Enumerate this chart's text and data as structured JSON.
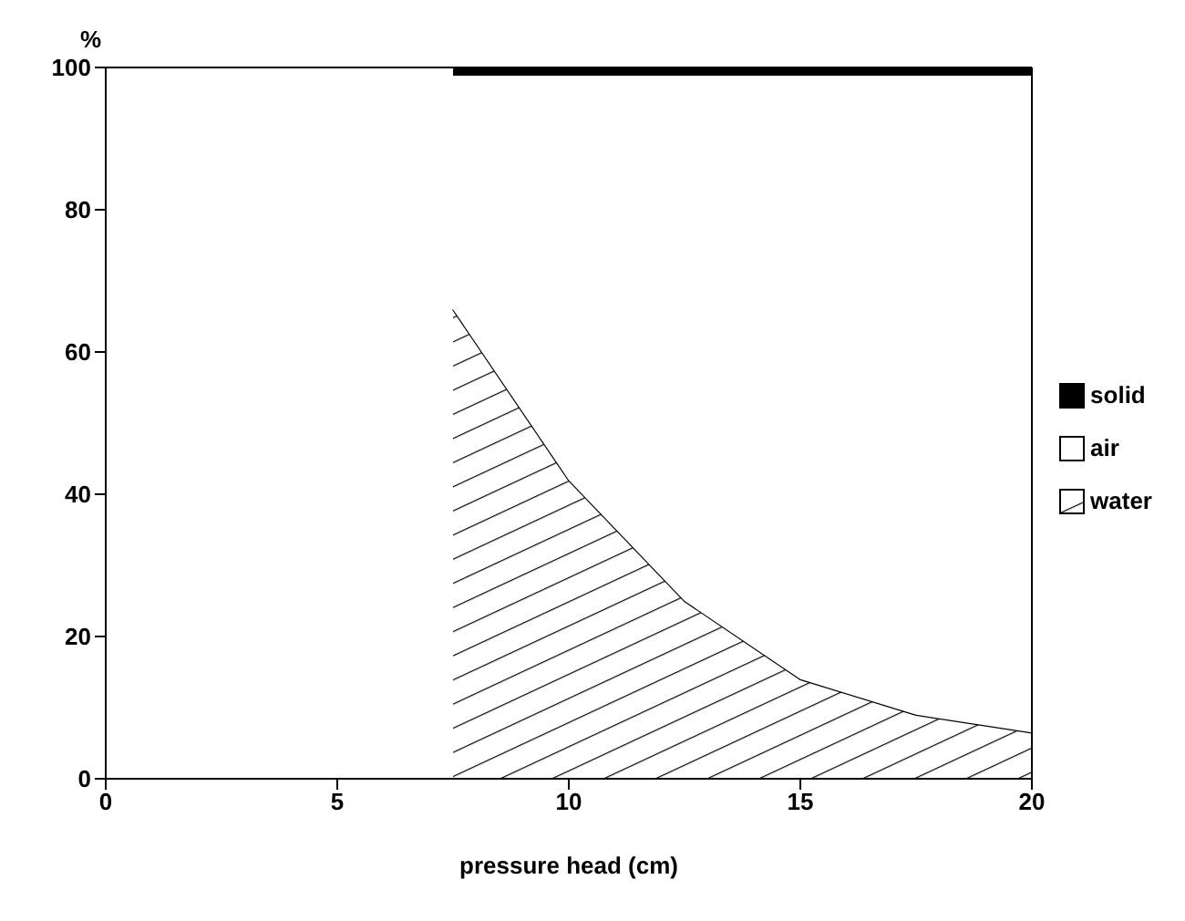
{
  "chart_data": {
    "type": "area",
    "stacked": true,
    "xlabel": "pressure head (cm)",
    "ylabel": "%",
    "x": [
      7.5,
      10,
      12.5,
      15,
      17.5,
      20
    ],
    "series": [
      {
        "name": "water",
        "color": "#000000",
        "values": [
          66,
          42,
          25,
          14,
          9,
          6.5
        ]
      },
      {
        "name": "air",
        "color": "#ffffff",
        "values": [
          33,
          57,
          74,
          85,
          90,
          92.5
        ]
      },
      {
        "name": "solid",
        "color": "#000000",
        "values": [
          1,
          1,
          1,
          1,
          1,
          1
        ]
      }
    ],
    "xlim": [
      0,
      20
    ],
    "xticks": [
      0,
      5,
      10,
      15,
      20
    ],
    "ylim": [
      0,
      100
    ],
    "yticks": [
      0,
      20,
      40,
      60,
      80,
      100
    ],
    "grid": false,
    "legend": "right"
  }
}
